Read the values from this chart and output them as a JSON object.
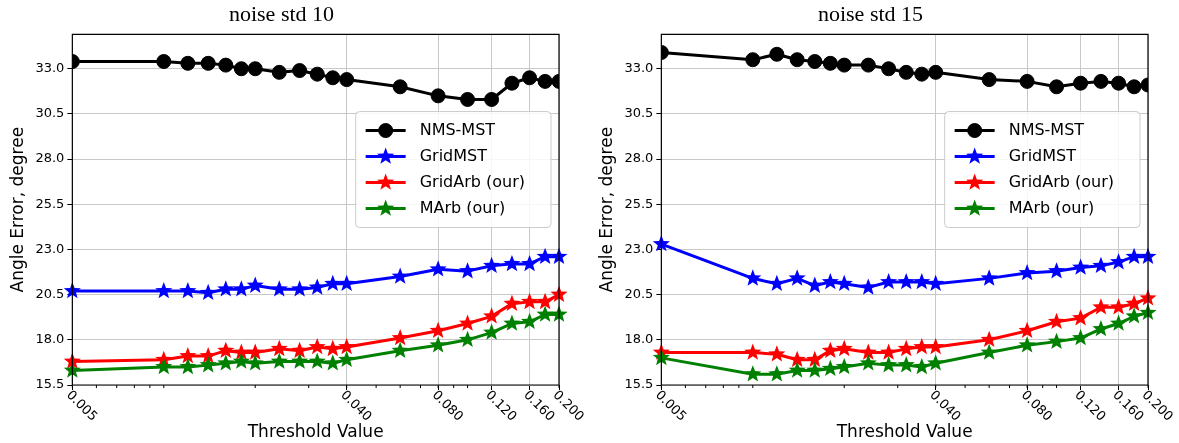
{
  "chart_data": [
    {
      "type": "line",
      "title": "noise std 10",
      "xlabel": "Threshold Value",
      "ylabel": "Angle Error, degree",
      "log": "x",
      "grid": true,
      "legend": "upper right",
      "x": [
        0.005,
        0.01,
        0.012,
        0.014,
        0.016,
        0.018,
        0.02,
        0.024,
        0.028,
        0.032,
        0.036,
        0.04,
        0.06,
        0.08,
        0.1,
        0.12,
        0.14,
        0.16,
        0.18,
        0.2
      ],
      "xlim": [
        0.005,
        0.2
      ],
      "xticks": [
        0.005,
        {
          "value": 0.04,
          "label": "0.040"
        },
        {
          "value": 0.08,
          "label": "0.080"
        },
        {
          "value": 0.12,
          "label": "0.120"
        },
        {
          "value": 0.16,
          "label": "0.160"
        },
        {
          "value": 0.2,
          "label": "0.200"
        }
      ],
      "ylim": [
        15.5,
        34.9
      ],
      "yticks": [
        15.5,
        {
          "value": 18,
          "label": "18.0"
        },
        20.5,
        {
          "value": 23,
          "label": "23.0"
        },
        25.5,
        {
          "value": 28,
          "label": "28.0"
        },
        30.5,
        {
          "value": 33,
          "label": "33.0"
        }
      ],
      "series": [
        {
          "name": "NMS-MST",
          "color": "#000000",
          "marker": "circle",
          "values": [
            33.4,
            33.4,
            33.3,
            33.3,
            33.2,
            33.0,
            33.0,
            32.8,
            32.9,
            32.7,
            32.5,
            32.4,
            32.0,
            31.5,
            31.3,
            31.3,
            32.2,
            32.5,
            32.3,
            32.3
          ]
        },
        {
          "name": "GridMST",
          "color": "#0000ff",
          "marker": "star",
          "values": [
            20.7,
            20.7,
            20.7,
            20.6,
            20.8,
            20.8,
            21.0,
            20.8,
            20.8,
            20.9,
            21.1,
            21.1,
            21.5,
            21.9,
            21.8,
            22.1,
            22.2,
            22.2,
            22.6,
            22.6
          ]
        },
        {
          "name": "GridArb (our)",
          "color": "#ff0000",
          "marker": "star",
          "values": [
            16.8,
            16.9,
            17.1,
            17.1,
            17.4,
            17.3,
            17.3,
            17.5,
            17.4,
            17.6,
            17.5,
            17.6,
            18.1,
            18.5,
            18.9,
            19.3,
            20.0,
            20.1,
            20.1,
            20.5
          ]
        },
        {
          "name": "MArb (our)",
          "color": "#008000",
          "marker": "star",
          "values": [
            16.3,
            16.5,
            16.5,
            16.6,
            16.7,
            16.8,
            16.7,
            16.8,
            16.8,
            16.8,
            16.7,
            16.9,
            17.4,
            17.7,
            18.0,
            18.4,
            18.9,
            19.0,
            19.4,
            19.4
          ]
        }
      ]
    },
    {
      "type": "line",
      "title": "noise std 15",
      "xlabel": "Threshold Value",
      "ylabel": "Angle Error, degree",
      "log": "x",
      "grid": true,
      "legend": "upper right",
      "x": [
        0.005,
        0.01,
        0.012,
        0.014,
        0.016,
        0.018,
        0.02,
        0.024,
        0.028,
        0.032,
        0.036,
        0.04,
        0.06,
        0.08,
        0.1,
        0.12,
        0.14,
        0.16,
        0.18,
        0.2
      ],
      "xlim": [
        0.005,
        0.2
      ],
      "xticks": [
        0.005,
        {
          "value": 0.04,
          "label": "0.040"
        },
        {
          "value": 0.08,
          "label": "0.080"
        },
        {
          "value": 0.12,
          "label": "0.120"
        },
        {
          "value": 0.16,
          "label": "0.160"
        },
        {
          "value": 0.2,
          "label": "0.200"
        }
      ],
      "ylim": [
        15.5,
        34.9
      ],
      "yticks": [
        15.5,
        {
          "value": 18,
          "label": "18.0"
        },
        20.5,
        {
          "value": 23,
          "label": "23.0"
        },
        25.5,
        {
          "value": 28,
          "label": "28.0"
        },
        30.5,
        {
          "value": 33,
          "label": "33.0"
        }
      ],
      "series": [
        {
          "name": "NMS-MST",
          "color": "#000000",
          "marker": "circle",
          "values": [
            33.9,
            33.5,
            33.8,
            33.5,
            33.4,
            33.3,
            33.2,
            33.2,
            33.0,
            32.8,
            32.7,
            32.8,
            32.4,
            32.3,
            32.0,
            32.2,
            32.3,
            32.2,
            32.0,
            32.1
          ]
        },
        {
          "name": "GridMST",
          "color": "#0000ff",
          "marker": "star",
          "values": [
            23.3,
            21.4,
            21.1,
            21.4,
            21.0,
            21.2,
            21.1,
            20.9,
            21.2,
            21.2,
            21.2,
            21.1,
            21.4,
            21.7,
            21.8,
            22.0,
            22.1,
            22.3,
            22.6,
            22.6
          ]
        },
        {
          "name": "GridArb (our)",
          "color": "#ff0000",
          "marker": "star",
          "values": [
            17.3,
            17.3,
            17.2,
            16.9,
            16.9,
            17.4,
            17.5,
            17.3,
            17.3,
            17.5,
            17.6,
            17.6,
            18.0,
            18.5,
            19.0,
            19.2,
            19.8,
            19.8,
            20.0,
            20.3
          ]
        },
        {
          "name": "MArb (our)",
          "color": "#008000",
          "marker": "star",
          "values": [
            17.0,
            16.1,
            16.1,
            16.3,
            16.3,
            16.4,
            16.5,
            16.7,
            16.6,
            16.6,
            16.5,
            16.7,
            17.3,
            17.7,
            17.9,
            18.1,
            18.6,
            18.9,
            19.3,
            19.5
          ]
        }
      ]
    }
  ]
}
